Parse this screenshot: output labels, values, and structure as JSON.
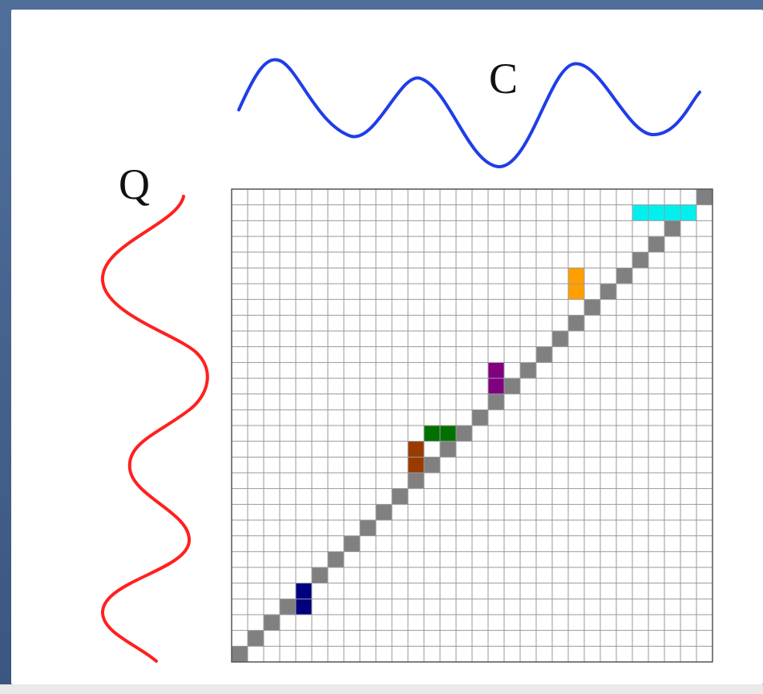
{
  "labels": {
    "top_series": "C",
    "left_series": "Q"
  },
  "colors": {
    "top_series": "#1f3de8",
    "left_series": "#ff2020",
    "grid_line": "#9a9a9a",
    "path_cell": "#808080",
    "highlights": [
      "#000080",
      "#9a3a00",
      "#007000",
      "#800080",
      "#ffa000",
      "#00f0f0"
    ]
  },
  "grid": {
    "rows": 30,
    "cols": 30
  }
}
